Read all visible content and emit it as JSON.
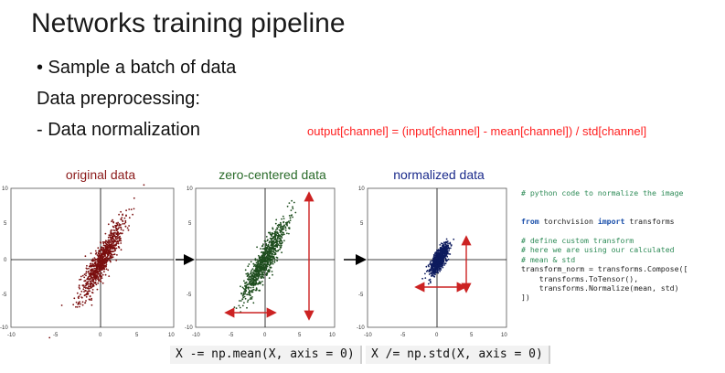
{
  "slide": {
    "title": "Networks training pipeline",
    "bullet": "• Sample a batch of data",
    "preprocessing": "Data preprocessing:",
    "normalization": "- Data normalization",
    "formula": "output[channel] = (input[channel] - mean[channel]) / std[channel]"
  },
  "plots": [
    {
      "title": "original data",
      "color": "#8b1a1a",
      "points_color": "#7a0f0f"
    },
    {
      "title": "zero-centered data",
      "color": "#2a6b2a",
      "points_color": "#1e4d1e"
    },
    {
      "title": "normalized data",
      "color": "#1a2a8b",
      "points_color": "#0d1b5e"
    }
  ],
  "axes": {
    "y_ticks": [
      "10",
      "5",
      "0",
      "-5",
      "-10"
    ],
    "x_ticks": [
      "-10",
      "-5",
      "0",
      "5",
      "10"
    ]
  },
  "code": {
    "line1": "# python code to normalize the image",
    "line2_kw1": "from",
    "line2_mid": " torchvision ",
    "line2_kw2": "import",
    "line2_end": " transforms",
    "line3": "# define custom transform",
    "line4": "# here we are using our calculated",
    "line5": "# mean & std",
    "line6": "transform_norm = transforms.Compose([",
    "line7": "    transforms.ToTensor(),",
    "line8": "    transforms.Normalize(mean, std)",
    "line9": "])"
  },
  "commands": {
    "mean": "X -= np.mean(X, axis = 0)",
    "std": "X /= np.std(X, axis = 0)"
  },
  "colors": {
    "arrow": "#cc2222",
    "axis": "#000000"
  }
}
